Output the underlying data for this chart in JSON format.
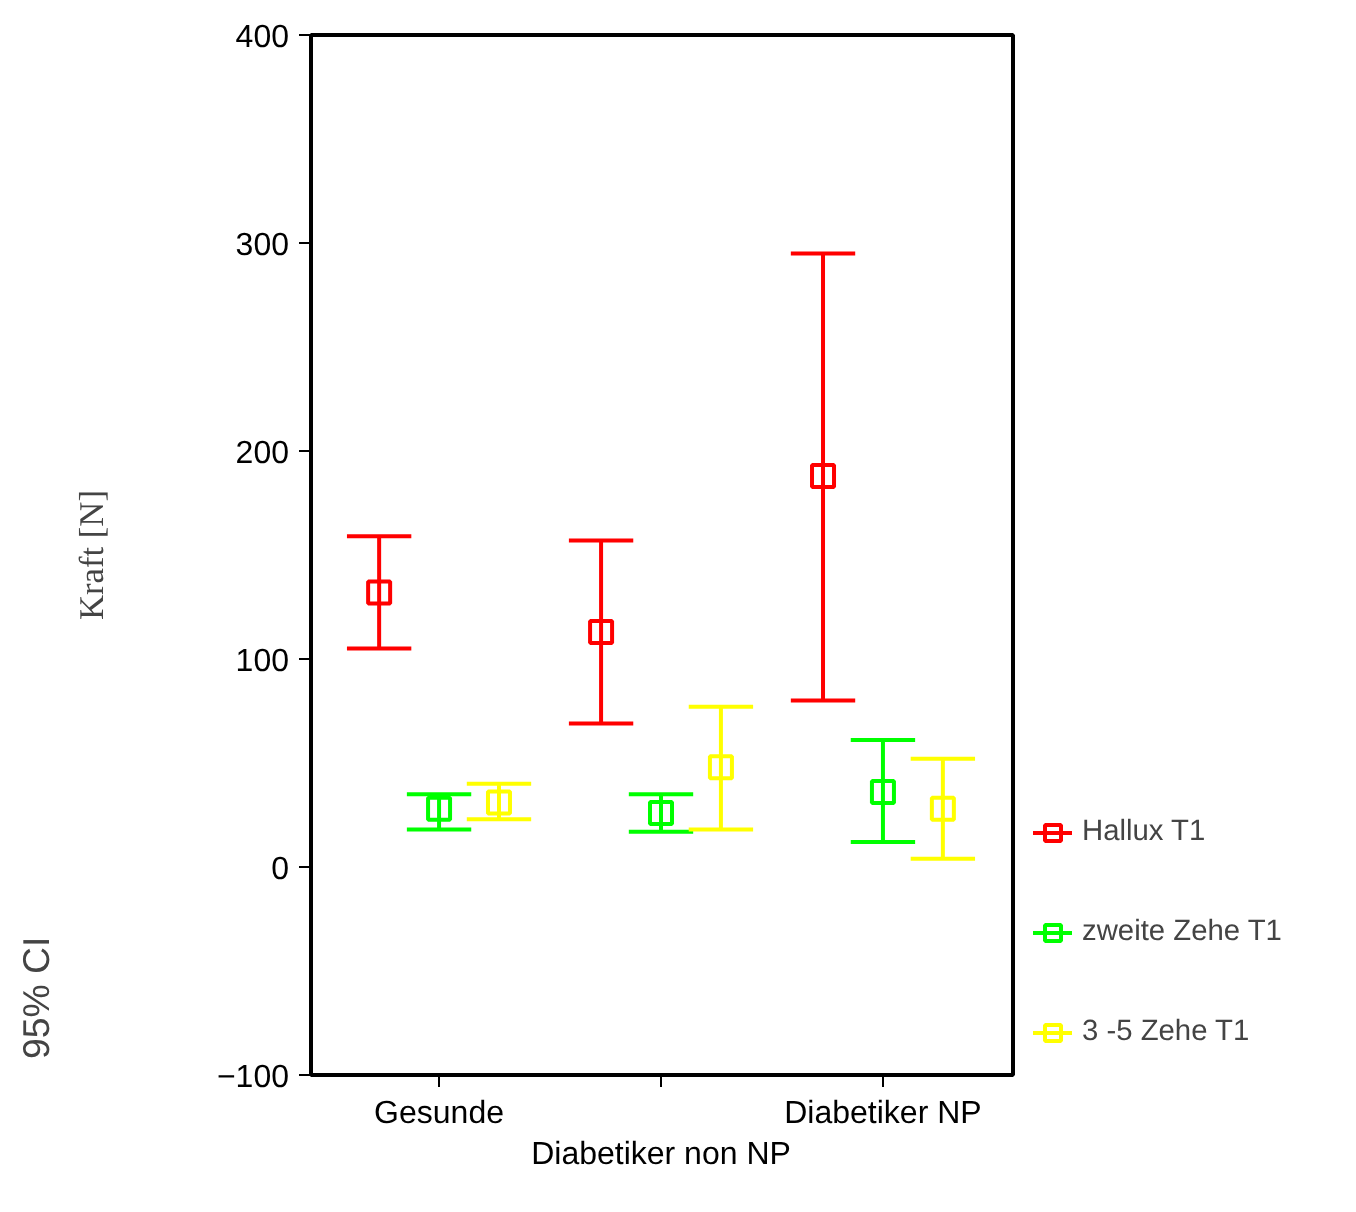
{
  "chart_data": {
    "type": "scatter",
    "categories": [
      "Gesunde",
      "Diabetiker non NP",
      "Diabetiker NP"
    ],
    "ylabel": "Kraft [N]",
    "ylim": [
      -100,
      400
    ],
    "yticks": [
      -100,
      0,
      100,
      200,
      300,
      400
    ],
    "marker": "square",
    "grid": false,
    "legend": "right",
    "annotations": [
      "95% CI"
    ],
    "series": [
      {
        "name": "Hallux T1",
        "color": "#ff0000",
        "values": [
          132,
          113,
          188
        ],
        "errors": [
          [
            105,
            159
          ],
          [
            69,
            157
          ],
          [
            80,
            295
          ]
        ]
      },
      {
        "name": "zweite Zehe T1",
        "color": "#00ff00",
        "values": [
          28,
          26,
          36
        ],
        "errors": [
          [
            18,
            35
          ],
          [
            17,
            35
          ],
          [
            12,
            61
          ]
        ]
      },
      {
        "name": "3 -5 Zehe T1",
        "color": "#ffff00",
        "values": [
          31,
          48,
          28
        ],
        "errors": [
          [
            23,
            40
          ],
          [
            18,
            77
          ],
          [
            4,
            52
          ]
        ]
      }
    ]
  }
}
